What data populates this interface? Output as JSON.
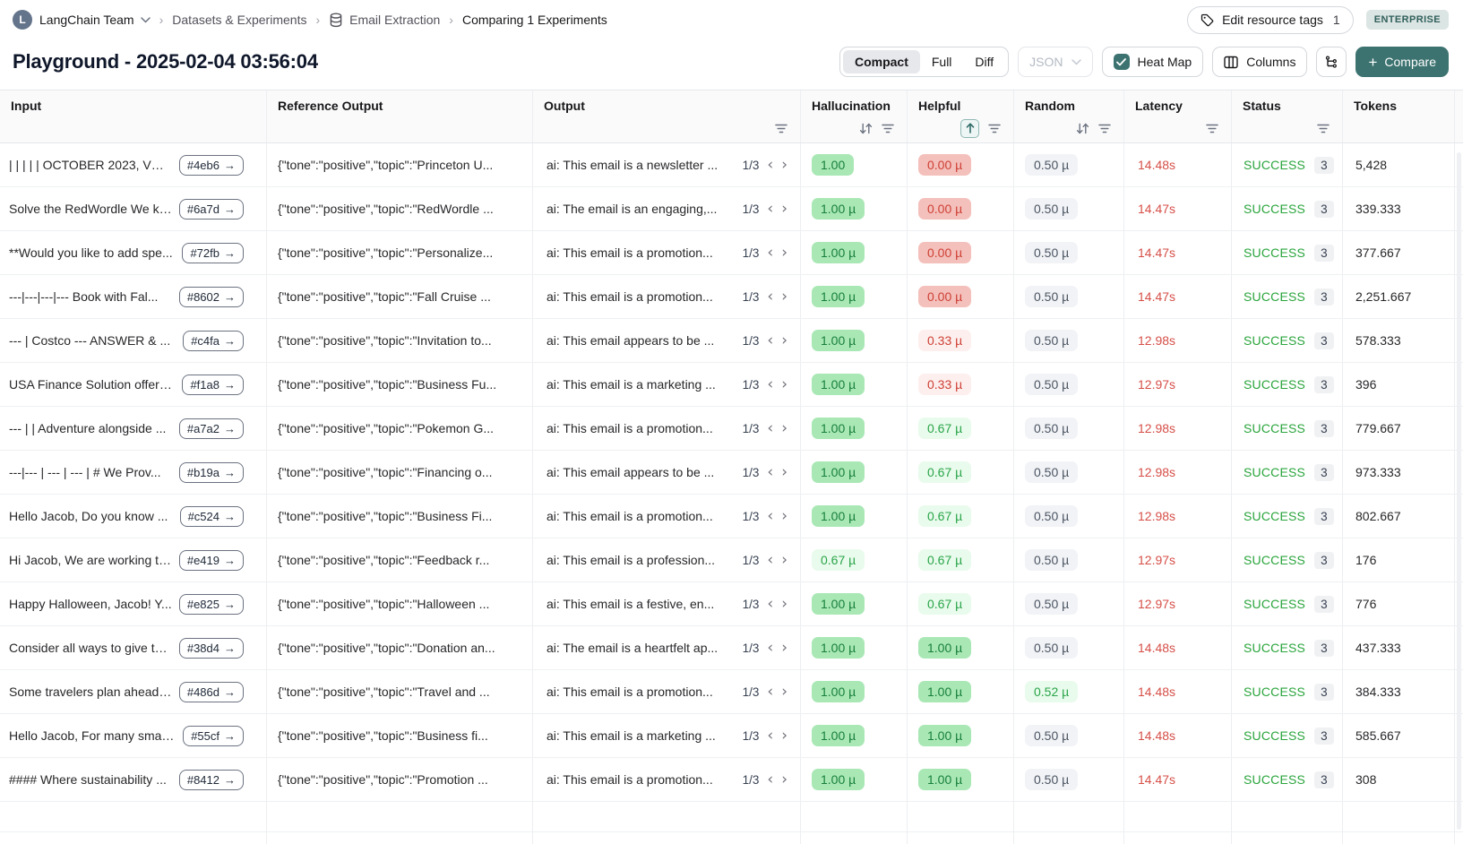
{
  "breadcrumb": {
    "team_initial": "L",
    "team": "LangChain Team",
    "crumb1": "Datasets & Experiments",
    "crumb2": "Email Extraction",
    "crumb3": "Comparing 1 Experiments"
  },
  "header": {
    "edit_tags_label": "Edit resource tags",
    "edit_tags_count": "1",
    "plan_badge": "ENTERPRISE"
  },
  "title": "Playground - 2025-02-04 03:56:04",
  "toolbar": {
    "view_modes": [
      "Compact",
      "Full",
      "Diff"
    ],
    "active_view_mode": "Compact",
    "format_select": "JSON",
    "heatmap_label": "Heat Map",
    "heatmap_checked": true,
    "columns_label": "Columns",
    "compare_label": "Compare"
  },
  "colors": {
    "accent_teal": "#3c7370",
    "success_green": "#2aa53c",
    "latency_red": "#d64f48",
    "heat_green_strong": "#a9e8b5",
    "heat_green_light": "#e9fbec",
    "heat_red_strong": "#f4c0bb",
    "heat_red_light": "#fdefed",
    "heat_neutral": "#f2f3f6"
  },
  "table": {
    "columns": [
      {
        "label": "Input",
        "icons": []
      },
      {
        "label": "Reference Output",
        "icons": []
      },
      {
        "label": "Output",
        "icons": [
          "filter"
        ]
      },
      {
        "label": "Hallucination",
        "icons": [
          "sort",
          "filter"
        ]
      },
      {
        "label": "Helpful",
        "icons": [
          "sort-asc-active",
          "filter"
        ]
      },
      {
        "label": "Random",
        "icons": [
          "sort",
          "filter"
        ]
      },
      {
        "label": "Latency",
        "icons": [
          "filter"
        ]
      },
      {
        "label": "Status",
        "icons": [
          "filter"
        ]
      },
      {
        "label": "Tokens",
        "icons": []
      }
    ],
    "rows": [
      {
        "input": "| | | | | OCTOBER 2023, VOL...",
        "id": "#4eb6",
        "ref": "{\"tone\":\"positive\",\"topic\":\"Princeton U...",
        "output": "ai: This email is a newsletter ...",
        "pager": "1/3",
        "hallucination": {
          "value": "1.00",
          "heat": "green-strong"
        },
        "helpful": {
          "value": "0.00 µ",
          "heat": "red-strong"
        },
        "random": {
          "value": "0.50 µ",
          "heat": "gray"
        },
        "latency": "14.48s",
        "status": "SUCCESS",
        "runs": "3",
        "tokens": "5,428"
      },
      {
        "input": "Solve the RedWordle We kn...",
        "id": "#6a7d",
        "ref": "{\"tone\":\"positive\",\"topic\":\"RedWordle ...",
        "output": "ai: The email is an engaging,...",
        "pager": "1/3",
        "hallucination": {
          "value": "1.00 µ",
          "heat": "green-strong"
        },
        "helpful": {
          "value": "0.00 µ",
          "heat": "red-strong"
        },
        "random": {
          "value": "0.50 µ",
          "heat": "gray"
        },
        "latency": "14.47s",
        "status": "SUCCESS",
        "runs": "3",
        "tokens": "339.333"
      },
      {
        "input": "**Would you like to add spe...",
        "id": "#72fb",
        "ref": "{\"tone\":\"positive\",\"topic\":\"Personalize...",
        "output": "ai: This email is a promotion...",
        "pager": "1/3",
        "hallucination": {
          "value": "1.00 µ",
          "heat": "green-strong"
        },
        "helpful": {
          "value": "0.00 µ",
          "heat": "red-strong"
        },
        "random": {
          "value": "0.50 µ",
          "heat": "gray"
        },
        "latency": "14.47s",
        "status": "SUCCESS",
        "runs": "3",
        "tokens": "377.667"
      },
      {
        "input": "---|---|---|--- Book with Fal...",
        "id": "#8602",
        "ref": "{\"tone\":\"positive\",\"topic\":\"Fall Cruise ...",
        "output": "ai: This email is a promotion...",
        "pager": "1/3",
        "hallucination": {
          "value": "1.00 µ",
          "heat": "green-strong"
        },
        "helpful": {
          "value": "0.00 µ",
          "heat": "red-strong"
        },
        "random": {
          "value": "0.50 µ",
          "heat": "gray"
        },
        "latency": "14.47s",
        "status": "SUCCESS",
        "runs": "3",
        "tokens": "2,251.667"
      },
      {
        "input": "--- | Costco --- ANSWER & ...",
        "id": "#c4fa",
        "ref": "{\"tone\":\"positive\",\"topic\":\"Invitation to...",
        "output": "ai: This email appears to be ...",
        "pager": "1/3",
        "hallucination": {
          "value": "1.00 µ",
          "heat": "green-strong"
        },
        "helpful": {
          "value": "0.33 µ",
          "heat": "red-light"
        },
        "random": {
          "value": "0.50 µ",
          "heat": "gray"
        },
        "latency": "12.98s",
        "status": "SUCCESS",
        "runs": "3",
        "tokens": "578.333"
      },
      {
        "input": "USA Finance Solution offers ...",
        "id": "#f1a8",
        "ref": "{\"tone\":\"positive\",\"topic\":\"Business Fu...",
        "output": "ai: This email is a marketing ...",
        "pager": "1/3",
        "hallucination": {
          "value": "1.00 µ",
          "heat": "green-strong"
        },
        "helpful": {
          "value": "0.33 µ",
          "heat": "red-light"
        },
        "random": {
          "value": "0.50 µ",
          "heat": "gray"
        },
        "latency": "12.97s",
        "status": "SUCCESS",
        "runs": "3",
        "tokens": "396"
      },
      {
        "input": "--- | | Adventure alongside ...",
        "id": "#a7a2",
        "ref": "{\"tone\":\"positive\",\"topic\":\"Pokemon G...",
        "output": "ai: This email is a promotion...",
        "pager": "1/3",
        "hallucination": {
          "value": "1.00 µ",
          "heat": "green-strong"
        },
        "helpful": {
          "value": "0.67 µ",
          "heat": "green-light"
        },
        "random": {
          "value": "0.50 µ",
          "heat": "gray"
        },
        "latency": "12.98s",
        "status": "SUCCESS",
        "runs": "3",
        "tokens": "779.667"
      },
      {
        "input": "---|--- | --- | --- | # We Prov...",
        "id": "#b19a",
        "ref": "{\"tone\":\"positive\",\"topic\":\"Financing o...",
        "output": "ai: This email appears to be ...",
        "pager": "1/3",
        "hallucination": {
          "value": "1.00 µ",
          "heat": "green-strong"
        },
        "helpful": {
          "value": "0.67 µ",
          "heat": "green-light"
        },
        "random": {
          "value": "0.50 µ",
          "heat": "gray"
        },
        "latency": "12.98s",
        "status": "SUCCESS",
        "runs": "3",
        "tokens": "973.333"
      },
      {
        "input": "Hello Jacob, Do you know ...",
        "id": "#c524",
        "ref": "{\"tone\":\"positive\",\"topic\":\"Business Fi...",
        "output": "ai: This email is a promotion...",
        "pager": "1/3",
        "hallucination": {
          "value": "1.00 µ",
          "heat": "green-strong"
        },
        "helpful": {
          "value": "0.67 µ",
          "heat": "green-light"
        },
        "random": {
          "value": "0.50 µ",
          "heat": "gray"
        },
        "latency": "12.98s",
        "status": "SUCCESS",
        "runs": "3",
        "tokens": "802.667"
      },
      {
        "input": "Hi Jacob, We are working to...",
        "id": "#e419",
        "ref": "{\"tone\":\"positive\",\"topic\":\"Feedback r...",
        "output": "ai: This email is a profession...",
        "pager": "1/3",
        "hallucination": {
          "value": "0.67 µ",
          "heat": "green-light"
        },
        "helpful": {
          "value": "0.67 µ",
          "heat": "green-light"
        },
        "random": {
          "value": "0.50 µ",
          "heat": "gray"
        },
        "latency": "12.97s",
        "status": "SUCCESS",
        "runs": "3",
        "tokens": "176"
      },
      {
        "input": "Happy Halloween, Jacob! Y...",
        "id": "#e825",
        "ref": "{\"tone\":\"positive\",\"topic\":\"Halloween ...",
        "output": "ai: This email is a festive, en...",
        "pager": "1/3",
        "hallucination": {
          "value": "1.00 µ",
          "heat": "green-strong"
        },
        "helpful": {
          "value": "0.67 µ",
          "heat": "green-light"
        },
        "random": {
          "value": "0.50 µ",
          "heat": "gray"
        },
        "latency": "12.97s",
        "status": "SUCCESS",
        "runs": "3",
        "tokens": "776"
      },
      {
        "input": "Consider all ways to give to...",
        "id": "#38d4",
        "ref": "{\"tone\":\"positive\",\"topic\":\"Donation an...",
        "output": "ai: The email is a heartfelt ap...",
        "pager": "1/3",
        "hallucination": {
          "value": "1.00 µ",
          "heat": "green-strong"
        },
        "helpful": {
          "value": "1.00 µ",
          "heat": "green-strong"
        },
        "random": {
          "value": "0.50 µ",
          "heat": "gray"
        },
        "latency": "14.48s",
        "status": "SUCCESS",
        "runs": "3",
        "tokens": "437.333"
      },
      {
        "input": "Some travelers plan ahead;...",
        "id": "#486d",
        "ref": "{\"tone\":\"positive\",\"topic\":\"Travel and ...",
        "output": "ai: This email is a promotion...",
        "pager": "1/3",
        "hallucination": {
          "value": "1.00 µ",
          "heat": "green-strong"
        },
        "helpful": {
          "value": "1.00 µ",
          "heat": "green-strong"
        },
        "random": {
          "value": "0.52 µ",
          "heat": "green-light"
        },
        "latency": "14.48s",
        "status": "SUCCESS",
        "runs": "3",
        "tokens": "384.333"
      },
      {
        "input": "Hello Jacob, For many small...",
        "id": "#55cf",
        "ref": "{\"tone\":\"positive\",\"topic\":\"Business fi...",
        "output": "ai: This email is a marketing ...",
        "pager": "1/3",
        "hallucination": {
          "value": "1.00 µ",
          "heat": "green-strong"
        },
        "helpful": {
          "value": "1.00 µ",
          "heat": "green-strong"
        },
        "random": {
          "value": "0.50 µ",
          "heat": "gray"
        },
        "latency": "14.48s",
        "status": "SUCCESS",
        "runs": "3",
        "tokens": "585.667"
      },
      {
        "input": "#### Where sustainability ...",
        "id": "#8412",
        "ref": "{\"tone\":\"positive\",\"topic\":\"Promotion ...",
        "output": "ai: This email is a promotion...",
        "pager": "1/3",
        "hallucination": {
          "value": "1.00 µ",
          "heat": "green-strong"
        },
        "helpful": {
          "value": "1.00 µ",
          "heat": "green-strong"
        },
        "random": {
          "value": "0.50 µ",
          "heat": "gray"
        },
        "latency": "14.47s",
        "status": "SUCCESS",
        "runs": "3",
        "tokens": "308"
      }
    ]
  }
}
